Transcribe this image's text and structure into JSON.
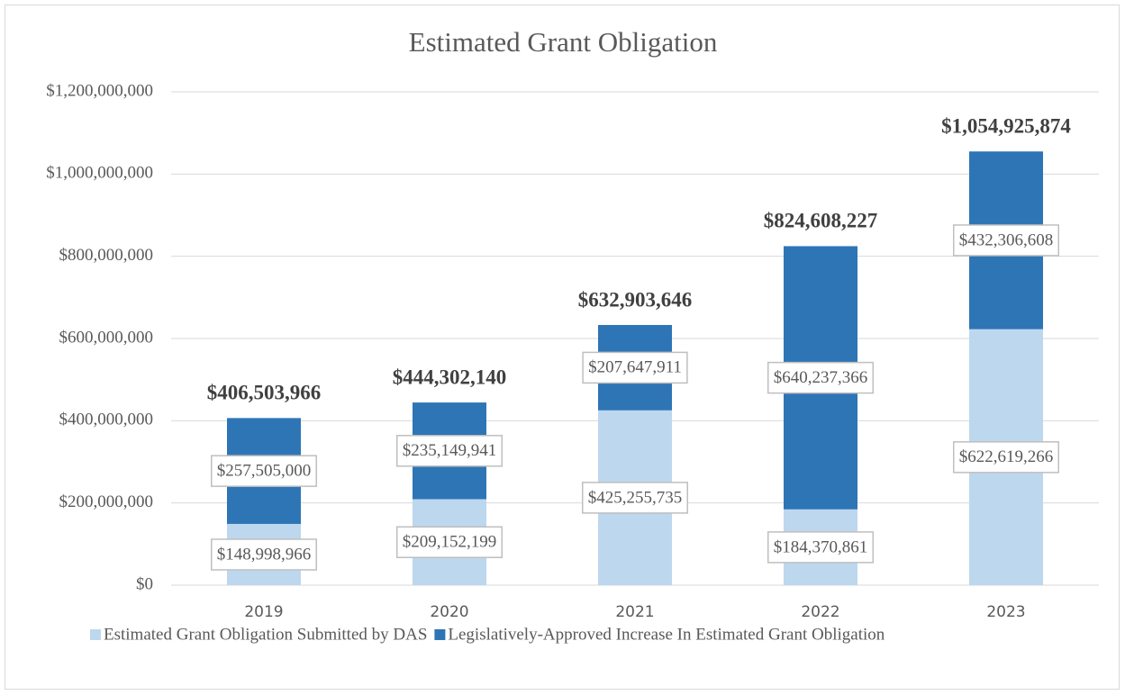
{
  "chart_data": {
    "type": "stacked_bar",
    "title": "Estimated Grant Obligation",
    "categories": [
      "2019",
      "2020",
      "2021",
      "2022",
      "2023"
    ],
    "series": [
      {
        "name": "Estimated Grant Obligation Submitted by DAS",
        "color": "#bdd7ee",
        "values": [
          148998966,
          209152199,
          425255735,
          184370861,
          622619266
        ],
        "value_labels": [
          "$148,998,966",
          "$209,152,199",
          "$425,255,735",
          "$184,370,861",
          "$622,619,266"
        ]
      },
      {
        "name": "Legislatively-Approved Increase In Estimated Grant Obligation",
        "color": "#2e75b6",
        "values": [
          257505000,
          235149941,
          207647911,
          640237366,
          432306608
        ],
        "value_labels": [
          "$257,505,000",
          "$235,149,941",
          "$207,647,911",
          "$640,237,366",
          "$432,306,608"
        ]
      }
    ],
    "totals": [
      406503966,
      444302140,
      632903646,
      824608227,
      1054925874
    ],
    "total_labels": [
      "$406,503,966",
      "$444,302,140",
      "$632,903,646",
      "$824,608,227",
      "$1,054,925,874"
    ],
    "ylim": [
      0,
      1200000000
    ],
    "yticks": [
      {
        "value": 0,
        "label": "$0"
      },
      {
        "value": 200000000,
        "label": "$200,000,000"
      },
      {
        "value": 400000000,
        "label": "$400,000,000"
      },
      {
        "value": 600000000,
        "label": "$600,000,000"
      },
      {
        "value": 800000000,
        "label": "$800,000,000"
      },
      {
        "value": 1000000000,
        "label": "$1,000,000,000"
      },
      {
        "value": 1200000000,
        "label": "$1,200,000,000"
      }
    ],
    "grid": true,
    "legend": "bottom"
  }
}
